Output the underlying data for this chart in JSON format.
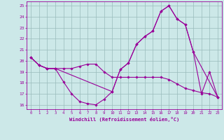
{
  "xlabel": "Windchill (Refroidissement éolien,°C)",
  "bg_color": "#cce8e8",
  "line_color": "#990099",
  "grid_color": "#99bbbb",
  "xlim": [
    -0.5,
    23.5
  ],
  "ylim": [
    15.6,
    25.4
  ],
  "yticks": [
    16,
    17,
    18,
    19,
    20,
    21,
    22,
    23,
    24,
    25
  ],
  "xticks": [
    0,
    1,
    2,
    3,
    4,
    5,
    6,
    7,
    8,
    9,
    10,
    11,
    12,
    13,
    14,
    15,
    16,
    17,
    18,
    19,
    20,
    21,
    22,
    23
  ],
  "line1_x": [
    0,
    1,
    2,
    3,
    4,
    5,
    6,
    7,
    8,
    9,
    10,
    11,
    12,
    13,
    14,
    15,
    16,
    17,
    18,
    19,
    20,
    21,
    22,
    23
  ],
  "line1_y": [
    20.3,
    19.6,
    19.3,
    19.3,
    18.1,
    17.0,
    16.3,
    16.1,
    16.0,
    16.5,
    17.2,
    19.2,
    19.8,
    21.5,
    22.2,
    22.7,
    24.5,
    25.0,
    23.8,
    23.3,
    20.8,
    17.0,
    19.0,
    16.7
  ],
  "line2_x": [
    0,
    1,
    2,
    3,
    4,
    5,
    6,
    7,
    8,
    9,
    10,
    11,
    12,
    13,
    14,
    15,
    16,
    17,
    18,
    19,
    20,
    21,
    22,
    23
  ],
  "line2_y": [
    20.3,
    19.6,
    19.3,
    19.3,
    19.3,
    19.3,
    19.5,
    19.7,
    19.7,
    19.0,
    18.5,
    18.5,
    18.5,
    18.5,
    18.5,
    18.5,
    18.5,
    18.3,
    17.9,
    17.5,
    17.3,
    17.1,
    17.0,
    16.7
  ],
  "line3_x": [
    0,
    1,
    2,
    3,
    10,
    11,
    12,
    13,
    14,
    15,
    16,
    17,
    18,
    19,
    20,
    23
  ],
  "line3_y": [
    20.3,
    19.6,
    19.3,
    19.3,
    17.2,
    19.2,
    19.8,
    21.5,
    22.2,
    22.7,
    24.5,
    25.0,
    23.8,
    23.3,
    20.8,
    16.7
  ]
}
